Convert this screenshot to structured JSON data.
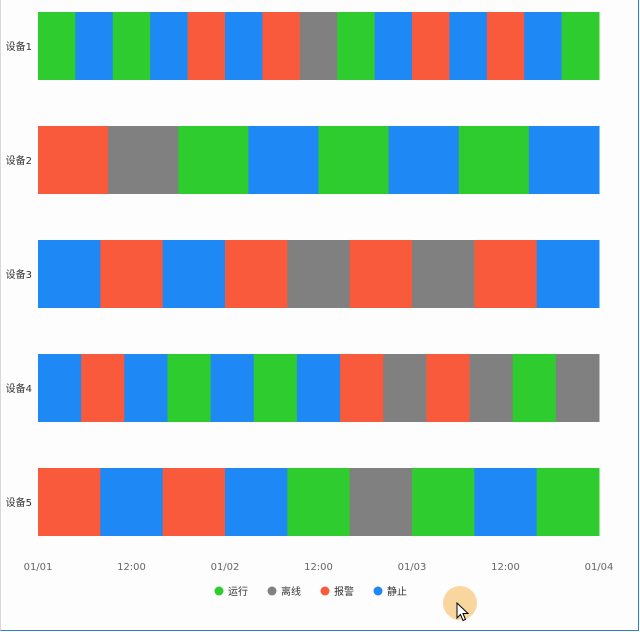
{
  "chart_data": {
    "type": "timeline",
    "categories": [
      "设备1",
      "设备2",
      "设备3",
      "设备4",
      "设备5"
    ],
    "x_ticks": [
      "01/01",
      "12:00",
      "01/02",
      "12:00",
      "01/03",
      "12:00",
      "01/04"
    ],
    "x_range": [
      "01/01 00:00",
      "01/04 00:00"
    ],
    "legend": [
      {
        "label": "运行",
        "color": "#2ecc2e",
        "key": "run"
      },
      {
        "label": "离线",
        "color": "#808080",
        "key": "offline"
      },
      {
        "label": "报警",
        "color": "#fa5a3c",
        "key": "alarm"
      },
      {
        "label": "静止",
        "color": "#1e88f5",
        "key": "idle"
      }
    ],
    "legend_position": "bottom",
    "rows": [
      {
        "name": "设备1",
        "segments": [
          "run",
          "idle",
          "run",
          "idle",
          "alarm",
          "idle",
          "alarm",
          "offline",
          "run",
          "idle",
          "alarm",
          "idle",
          "alarm",
          "idle",
          "run"
        ]
      },
      {
        "name": "设备2",
        "segments": [
          "alarm",
          "offline",
          "run",
          "idle",
          "run",
          "idle",
          "run",
          "idle"
        ]
      },
      {
        "name": "设备3",
        "segments": [
          "idle",
          "alarm",
          "idle",
          "alarm",
          "offline",
          "alarm",
          "offline",
          "alarm",
          "idle"
        ]
      },
      {
        "name": "设备4",
        "segments": [
          "idle",
          "alarm",
          "idle",
          "run",
          "idle",
          "run",
          "idle",
          "alarm",
          "offline",
          "alarm",
          "offline",
          "run",
          "offline"
        ]
      },
      {
        "name": "设备5",
        "segments": [
          "alarm",
          "idle",
          "alarm",
          "idle",
          "run",
          "offline",
          "run",
          "idle",
          "run"
        ]
      }
    ]
  }
}
